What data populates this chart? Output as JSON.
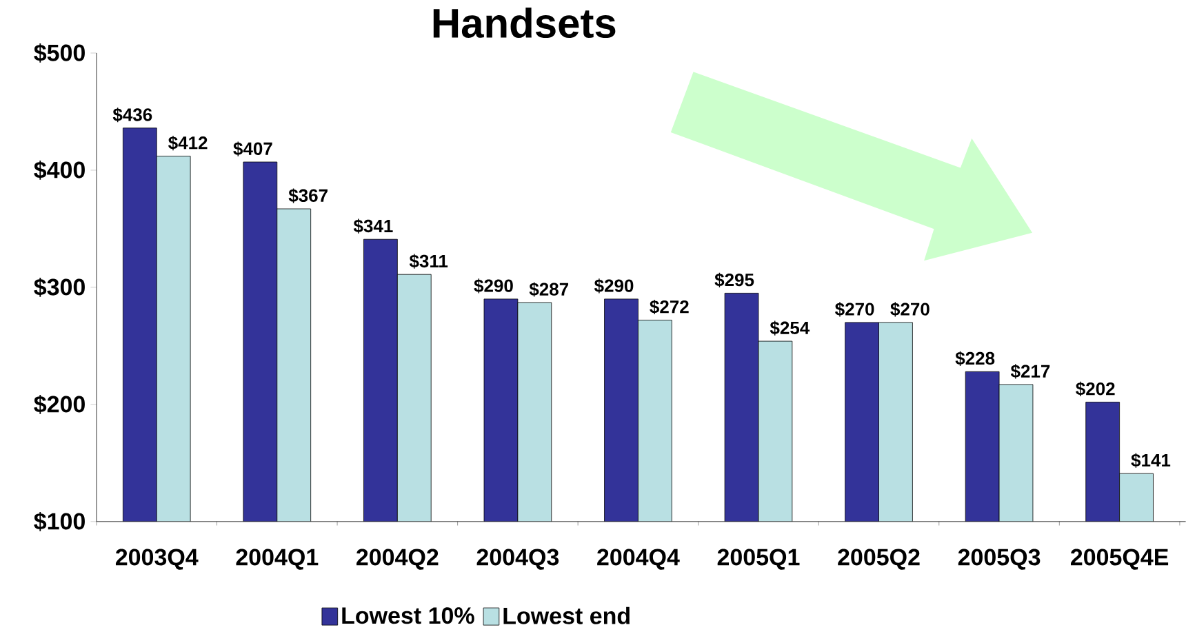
{
  "chart_data": {
    "type": "bar",
    "title": "Handsets",
    "categories": [
      "2003Q4",
      "2004Q1",
      "2004Q2",
      "2004Q3",
      "2004Q4",
      "2005Q1",
      "2005Q2",
      "2005Q3",
      "2005Q4E"
    ],
    "series": [
      {
        "name": "Lowest 10%",
        "color": "#333399",
        "values": [
          436,
          407,
          341,
          290,
          290,
          295,
          270,
          228,
          202
        ],
        "value_labels": [
          "$436",
          "$407",
          "$341",
          "$290",
          "$290",
          "$295",
          "$270",
          "$228",
          "$202"
        ]
      },
      {
        "name": "Lowest end",
        "color": "#b9e0e3",
        "values": [
          412,
          367,
          311,
          287,
          272,
          254,
          270,
          217,
          141
        ],
        "value_labels": [
          "$412",
          "$367",
          "$311",
          "$287",
          "$272",
          "$254",
          "$270",
          "$217",
          "$141"
        ]
      }
    ],
    "ylim": [
      100,
      500
    ],
    "yticks": [
      {
        "value": 100,
        "label": "$100"
      },
      {
        "value": 200,
        "label": "$200"
      },
      {
        "value": 300,
        "label": "$300"
      },
      {
        "value": 400,
        "label": "$400"
      },
      {
        "value": 500,
        "label": "$500"
      }
    ],
    "grid": false,
    "legend": "bottom"
  }
}
